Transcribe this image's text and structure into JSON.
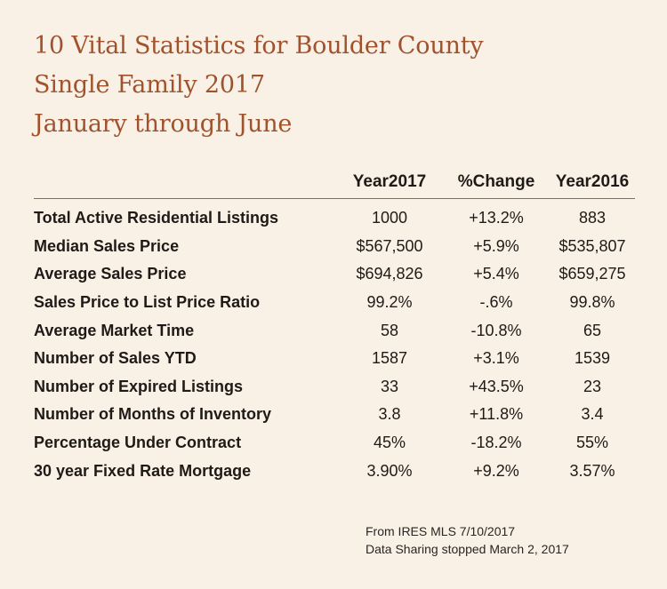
{
  "chart_data": {
    "type": "table",
    "title_lines": [
      "10 Vital Statistics for Boulder County",
      "Single Family 2017",
      "January through June"
    ],
    "columns": [
      "",
      "Year2017",
      "%Change",
      "Year2016"
    ],
    "rows": [
      {
        "label": "Total Active Residential Listings",
        "year2017": "1000",
        "change": "+13.2%",
        "year2016": "883"
      },
      {
        "label": "Median Sales Price",
        "year2017": "$567,500",
        "change": "+5.9%",
        "year2016": "$535,807"
      },
      {
        "label": "Average Sales Price",
        "year2017": "$694,826",
        "change": "+5.4%",
        "year2016": "$659,275"
      },
      {
        "label": "Sales Price to List Price Ratio",
        "year2017": "99.2%",
        "change": "-.6%",
        "year2016": "99.8%"
      },
      {
        "label": "Average Market Time",
        "year2017": "58",
        "change": "-10.8%",
        "year2016": "65"
      },
      {
        "label": "Number of Sales YTD",
        "year2017": "1587",
        "change": "+3.1%",
        "year2016": "1539"
      },
      {
        "label": "Number of Expired Listings",
        "year2017": "33",
        "change": "+43.5%",
        "year2016": "23"
      },
      {
        "label": "Number of Months of Inventory",
        "year2017": "3.8",
        "change": "+11.8%",
        "year2016": "3.4"
      },
      {
        "label": "Percentage Under Contract",
        "year2017": "45%",
        "change": "-18.2%",
        "year2016": "55%"
      },
      {
        "label": "30 year Fixed Rate Mortgage",
        "year2017": "3.90%",
        "change": "+9.2%",
        "year2016": "3.57%"
      }
    ],
    "footnotes": [
      "From IRES MLS 7/10/2017",
      "Data Sharing stopped March 2, 2017"
    ]
  },
  "colors": {
    "background": "#faf1e6",
    "title": "#a0522d",
    "text": "#1f1a17",
    "rule": "#7a6f66"
  }
}
